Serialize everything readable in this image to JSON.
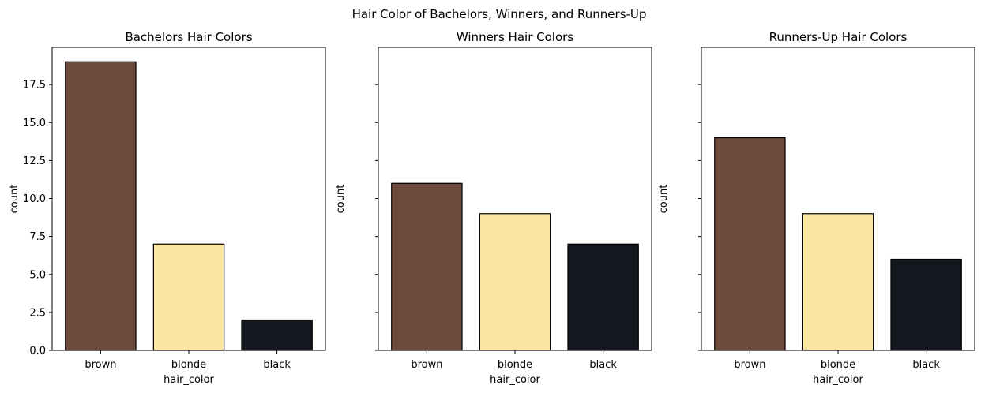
{
  "figure": {
    "suptitle": "Hair Color of Bachelors, Winners, and Runners-Up"
  },
  "colors": {
    "brown": "#6c4b3c",
    "blonde": "#fae6a0",
    "black": "#14171d",
    "edge": "#000000"
  },
  "chart_data": [
    {
      "type": "bar",
      "title": "Bachelors Hair Colors",
      "xlabel": "hair_color",
      "ylabel": "count",
      "categories": [
        "brown",
        "blonde",
        "black"
      ],
      "values": [
        19,
        7,
        2
      ],
      "ylim": [
        0,
        19.95
      ],
      "yticks": [
        "0.0",
        "2.5",
        "5.0",
        "7.5",
        "10.0",
        "12.5",
        "15.0",
        "17.5"
      ],
      "show_ytick_labels": true
    },
    {
      "type": "bar",
      "title": "Winners Hair Colors",
      "xlabel": "hair_color",
      "ylabel": "count",
      "categories": [
        "brown",
        "blonde",
        "black"
      ],
      "values": [
        11,
        9,
        7
      ],
      "ylim": [
        0,
        19.95
      ],
      "yticks": [
        "0.0",
        "2.5",
        "5.0",
        "7.5",
        "10.0",
        "12.5",
        "15.0",
        "17.5"
      ],
      "show_ytick_labels": false
    },
    {
      "type": "bar",
      "title": "Runners-Up Hair Colors",
      "xlabel": "hair_color",
      "ylabel": "count",
      "categories": [
        "brown",
        "blonde",
        "black"
      ],
      "values": [
        14,
        9,
        6
      ],
      "ylim": [
        0,
        19.95
      ],
      "yticks": [
        "0.0",
        "2.5",
        "5.0",
        "7.5",
        "10.0",
        "12.5",
        "15.0",
        "17.5"
      ],
      "show_ytick_labels": false
    }
  ]
}
